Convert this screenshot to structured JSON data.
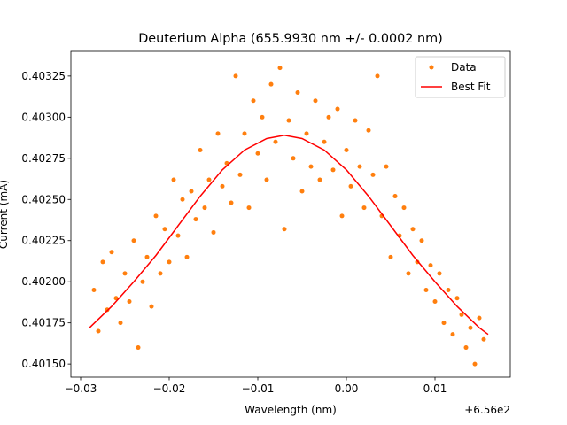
{
  "chart_data": {
    "type": "scatter",
    "title": "Deuterium Alpha (655.9930 nm +/- 0.0002 nm)",
    "x_label": "Wavelength (nm)",
    "y_label": "Current (mA)",
    "x_offset_label": "+6.56e2",
    "xlim": [
      -0.0311,
      0.0185
    ],
    "ylim": [
      0.40142,
      0.4034
    ],
    "xticks": [
      {
        "value": -0.03,
        "label": "−0.03"
      },
      {
        "value": -0.02,
        "label": "−0.02"
      },
      {
        "value": -0.01,
        "label": "−0.01"
      },
      {
        "value": 0,
        "label": "0.00"
      },
      0.01
    ],
    "yticks": [
      {
        "value": 0.4015,
        "label": "0.40150"
      },
      0.40175,
      {
        "value": 0.402,
        "label": "0.40200"
      },
      0.40225,
      {
        "value": 0.4025,
        "label": "0.40250"
      },
      0.40275,
      {
        "value": 0.403,
        "label": "0.40300"
      },
      0.40325
    ],
    "legend": "upper right",
    "series": [
      {
        "name": "Data",
        "type": "scatter",
        "color": "#ff7f0e",
        "x": [
          -0.0285,
          -0.028,
          -0.0275,
          -0.027,
          -0.0265,
          -0.026,
          -0.0255,
          -0.025,
          -0.0245,
          -0.024,
          -0.0235,
          -0.023,
          -0.0225,
          -0.022,
          -0.0215,
          -0.021,
          -0.0205,
          -0.02,
          -0.0195,
          -0.019,
          -0.0185,
          -0.018,
          -0.0175,
          -0.017,
          -0.0165,
          -0.016,
          -0.0155,
          -0.015,
          -0.0145,
          -0.014,
          -0.0135,
          -0.013,
          -0.0125,
          -0.012,
          -0.0115,
          -0.011,
          -0.0105,
          -0.01,
          -0.0095,
          -0.009,
          -0.0085,
          -0.008,
          -0.0075,
          -0.007,
          -0.0065,
          -0.006,
          -0.0055,
          -0.005,
          -0.0045,
          -0.004,
          -0.0035,
          -0.003,
          -0.0025,
          -0.002,
          -0.0015,
          -0.001,
          -0.0005,
          0,
          0.0005,
          0.001,
          0.0015,
          0.002,
          0.0025,
          0.003,
          0.0035,
          0.004,
          0.0045,
          0.005,
          0.0055,
          0.006,
          0.0065,
          0.007,
          0.0075,
          0.008,
          0.0085,
          0.009,
          0.0095,
          0.01,
          0.0105,
          0.011,
          0.0115,
          0.012,
          0.0125,
          0.013,
          0.0135,
          0.014,
          0.0145,
          0.015,
          0.0155
        ],
        "values": [
          0.40195,
          0.4017,
          0.40212,
          0.40183,
          0.40218,
          0.4019,
          0.40175,
          0.40205,
          0.40188,
          0.40225,
          0.4016,
          0.402,
          0.40215,
          0.40185,
          0.4024,
          0.40205,
          0.40232,
          0.40212,
          0.40262,
          0.40228,
          0.4025,
          0.40215,
          0.40255,
          0.40238,
          0.4028,
          0.40245,
          0.40262,
          0.4023,
          0.4029,
          0.40258,
          0.40272,
          0.40248,
          0.40325,
          0.40265,
          0.4029,
          0.40245,
          0.4031,
          0.40278,
          0.403,
          0.40262,
          0.4032,
          0.40285,
          0.4033,
          0.40232,
          0.40298,
          0.40275,
          0.40315,
          0.40255,
          0.4029,
          0.4027,
          0.4031,
          0.40262,
          0.40285,
          0.403,
          0.40268,
          0.40305,
          0.4024,
          0.4028,
          0.40258,
          0.40298,
          0.4027,
          0.40245,
          0.40292,
          0.40265,
          0.40325,
          0.4024,
          0.4027,
          0.40215,
          0.40252,
          0.40228,
          0.40245,
          0.40205,
          0.40232,
          0.40212,
          0.40225,
          0.40195,
          0.4021,
          0.40188,
          0.40205,
          0.40175,
          0.40195,
          0.40168,
          0.4019,
          0.4018,
          0.4016,
          0.40172,
          0.4015,
          0.40178,
          0.40165
        ]
      },
      {
        "name": "Best Fit",
        "type": "line",
        "color": "#ff0000",
        "x": [
          -0.029,
          -0.0265,
          -0.024,
          -0.0215,
          -0.019,
          -0.0165,
          -0.014,
          -0.0115,
          -0.009,
          -0.007,
          -0.005,
          -0.0025,
          0,
          0.0025,
          0.005,
          0.0075,
          0.01,
          0.0125,
          0.015,
          0.016
        ],
        "values": [
          0.40172,
          0.40185,
          0.402,
          0.40216,
          0.40234,
          0.40252,
          0.40268,
          0.4028,
          0.40287,
          0.40289,
          0.40287,
          0.4028,
          0.40268,
          0.40252,
          0.40234,
          0.40216,
          0.402,
          0.40185,
          0.40172,
          0.40168
        ]
      }
    ]
  }
}
